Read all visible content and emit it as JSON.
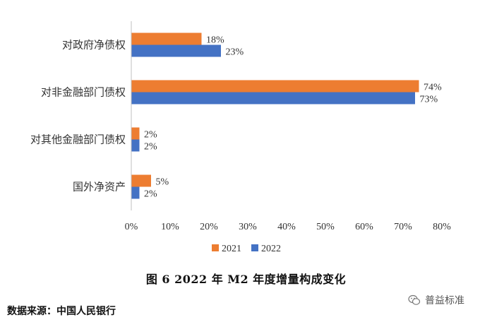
{
  "chart_data": {
    "type": "bar",
    "orientation": "horizontal",
    "categories": [
      "对政府净债权",
      "对非金融部门债权",
      "对其他金融部门债权",
      "国外净资产"
    ],
    "series": [
      {
        "name": "2021",
        "color": "#ED7D31",
        "values": [
          18,
          74,
          2,
          5
        ],
        "labels": [
          "18%",
          "74%",
          "2%",
          "5%"
        ]
      },
      {
        "name": "2022",
        "color": "#4472C4",
        "values": [
          23,
          73,
          2,
          2
        ],
        "labels": [
          "23%",
          "73%",
          "2%",
          "2%"
        ]
      }
    ],
    "xlim": [
      0,
      80
    ],
    "xticks": [
      0,
      10,
      20,
      30,
      40,
      50,
      60,
      70,
      80
    ],
    "xtick_labels": [
      "0%",
      "10%",
      "20%",
      "30%",
      "40%",
      "50%",
      "60%",
      "70%",
      "80%"
    ],
    "grid": false,
    "legend_position": "bottom"
  },
  "caption": "图 6   2022 年 M2 年度增量构成变化",
  "source": "数据来源：中国人民银行",
  "watermark": {
    "text": "普益标准",
    "icon": "wechat-icon"
  }
}
